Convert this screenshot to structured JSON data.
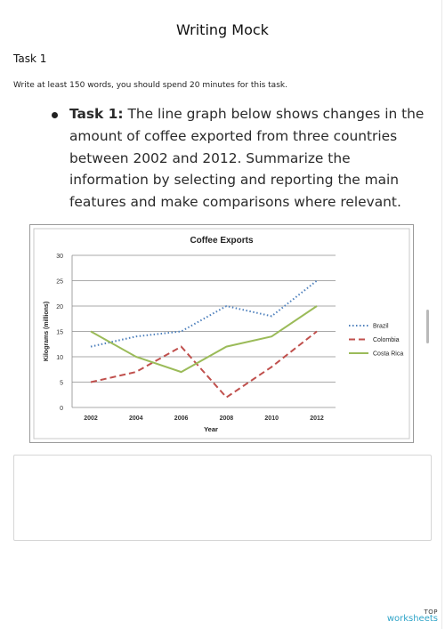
{
  "page": {
    "title": "Writing Mock",
    "task_label": "Task 1",
    "instruction": "Write at least 150 words, you should spend 20 minutes for this task.",
    "task_heading": "Task 1:",
    "task_body": "The line graph below shows changes in the amount of coffee exported from three countries between 2002 and 2012. Summarize the information by selecting and reporting the main features and make comparisons where relevant.",
    "answer_value": "",
    "brand_top": "TOP",
    "brand_bottom": "worksheets"
  },
  "chart_data": {
    "type": "line",
    "title": "Coffee Exports",
    "xlabel": "Year",
    "ylabel": "Kilograms (millions)",
    "x": [
      2002,
      2004,
      2006,
      2008,
      2010,
      2012
    ],
    "ylim": [
      0,
      30
    ],
    "yticks": [
      0,
      5,
      10,
      15,
      20,
      25,
      30
    ],
    "grid": true,
    "legend_position": "right",
    "series": [
      {
        "name": "Brazil",
        "values": [
          12,
          14,
          15,
          20,
          18,
          25
        ],
        "color": "#4f81bd",
        "style": "dotted"
      },
      {
        "name": "Colombia",
        "values": [
          5,
          7,
          12,
          2,
          8,
          15
        ],
        "color": "#c0504d",
        "style": "dashed"
      },
      {
        "name": "Costa Rica",
        "values": [
          15,
          10,
          7,
          12,
          14,
          20
        ],
        "color": "#9bbb59",
        "style": "solid"
      }
    ]
  }
}
